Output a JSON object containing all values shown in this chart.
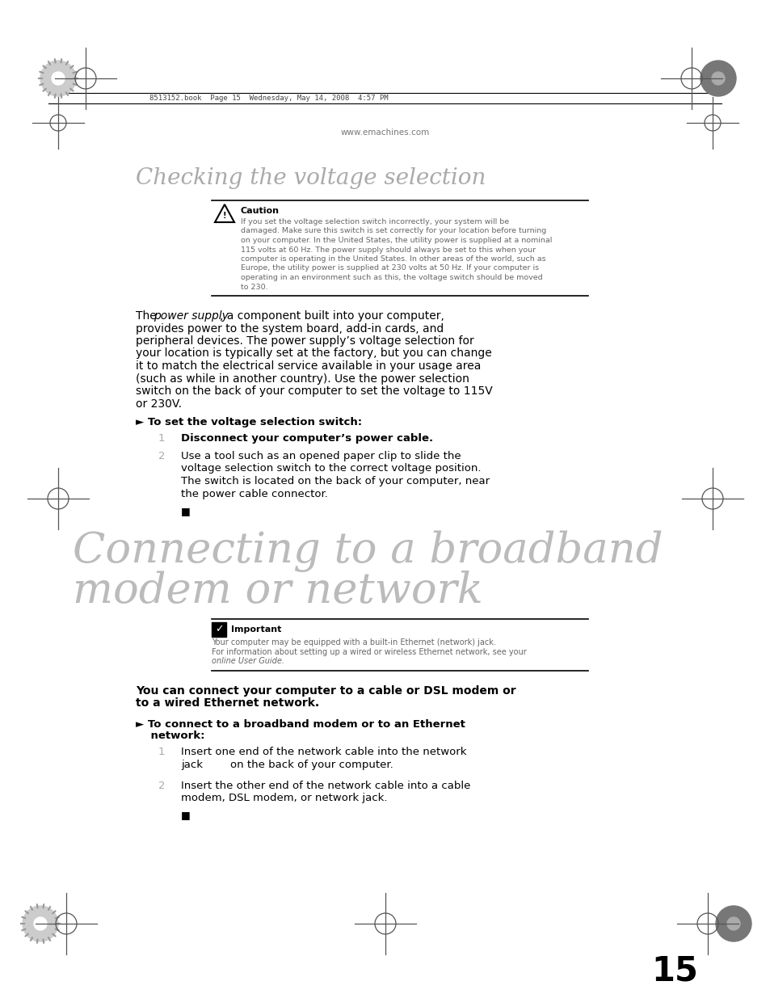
{
  "bg_color": "#ffffff",
  "header_text": "8513152.book  Page 15  Wednesday, May 14, 2008  4:57 PM",
  "website": "www.emachines.com",
  "section1_title": "Checking the voltage selection",
  "caution_title": "Caution",
  "caution_body_lines": [
    "If you set the voltage selection switch incorrectly, your system will be",
    "damaged. Make sure this switch is set correctly for your location before turning",
    "on your computer. In the United States, the utility power is supplied at a nominal",
    "115 volts at 60 Hz. The power supply should always be set to this when your",
    "computer is operating in the United States. In other areas of the world, such as",
    "Europe, the utility power is supplied at 230 volts at 50 Hz. If your computer is",
    "operating in an environment such as this, the voltage switch should be moved",
    "to 230."
  ],
  "body1_pre_italic": "The ",
  "body1_italic": "power supply",
  "body1_post_italic": ", a component built into your computer,",
  "body1_lines": [
    "provides power to the system board, add-in cards, and",
    "peripheral devices. The power supply’s voltage selection for",
    "your location is typically set at the factory, but you can change",
    "it to match the electrical service available in your usage area",
    "(such as while in another country). Use the power selection",
    "switch on the back of your computer to set the voltage to 115V",
    "or 230V."
  ],
  "step_header1": "► To set the voltage selection switch:",
  "step1_text": "Disconnect your computer’s power cable.",
  "step2_lines": [
    "Use a tool such as an opened paper clip to slide the",
    "voltage selection switch to the correct voltage position.",
    "The switch is located on the back of your computer, near",
    "the power cable connector."
  ],
  "end_marker": "■",
  "section2_title_line1": "Connecting to a broadband",
  "section2_title_line2": "modem or network",
  "important_title": "Important",
  "important_lines": [
    "Your computer may be equipped with a built-in Ethernet (network) jack.",
    "For information about setting up a wired or wireless Ethernet network, see your",
    "online User Guide."
  ],
  "body2_lines": [
    "You can connect your computer to a cable or DSL modem or",
    "to a wired Ethernet network."
  ],
  "step_header2_line1": "► To connect to a broadband modem or to an Ethernet",
  "step_header2_line2": "    network:",
  "step3_lines": [
    "Insert one end of the network cable into the network",
    "jack        on the back of your computer."
  ],
  "step4_lines": [
    "Insert the other end of the network cable into a cable",
    "modem, DSL modem, or network jack."
  ],
  "page_number": "15"
}
